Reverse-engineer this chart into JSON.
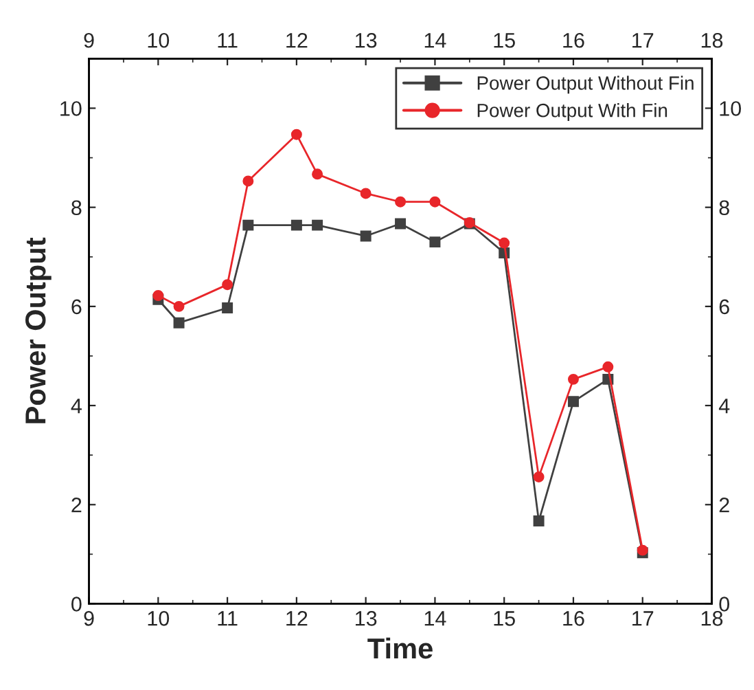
{
  "chart_data": {
    "type": "line",
    "xlabel": "Time",
    "ylabel": "Power Output",
    "x": [
      10,
      10.3,
      11,
      11.3,
      12,
      12.3,
      13,
      13.5,
      14,
      14.5,
      15,
      15.5,
      16,
      16.5,
      17
    ],
    "series": [
      {
        "name": "Power Output Without Fin",
        "color": "#404040",
        "marker": "square",
        "values": [
          6.14,
          5.67,
          5.97,
          7.64,
          7.64,
          7.64,
          7.42,
          7.67,
          7.3,
          7.67,
          7.08,
          1.67,
          4.08,
          4.53,
          1.03
        ]
      },
      {
        "name": "Power Output With Fin",
        "color": "#e8262a",
        "marker": "circle",
        "values": [
          6.22,
          6.0,
          6.44,
          8.53,
          9.47,
          8.67,
          8.28,
          8.11,
          8.11,
          7.69,
          7.28,
          2.56,
          4.53,
          4.78,
          1.08
        ]
      }
    ],
    "xlim": [
      9,
      18
    ],
    "xticks": [
      9,
      10,
      11,
      12,
      13,
      14,
      15,
      16,
      17,
      18
    ],
    "x2lim": [
      9,
      18
    ],
    "x2ticks": [
      9,
      10,
      11,
      12,
      13,
      14,
      15,
      16,
      17,
      18
    ],
    "ylim": [
      0,
      11
    ],
    "yticks": [
      0,
      2,
      4,
      6,
      8,
      10
    ],
    "y2lim": [
      0,
      11
    ],
    "y2ticks": [
      0,
      2,
      4,
      6,
      8,
      10
    ],
    "line_style": "solid",
    "legend": "top right",
    "grid": false
  }
}
